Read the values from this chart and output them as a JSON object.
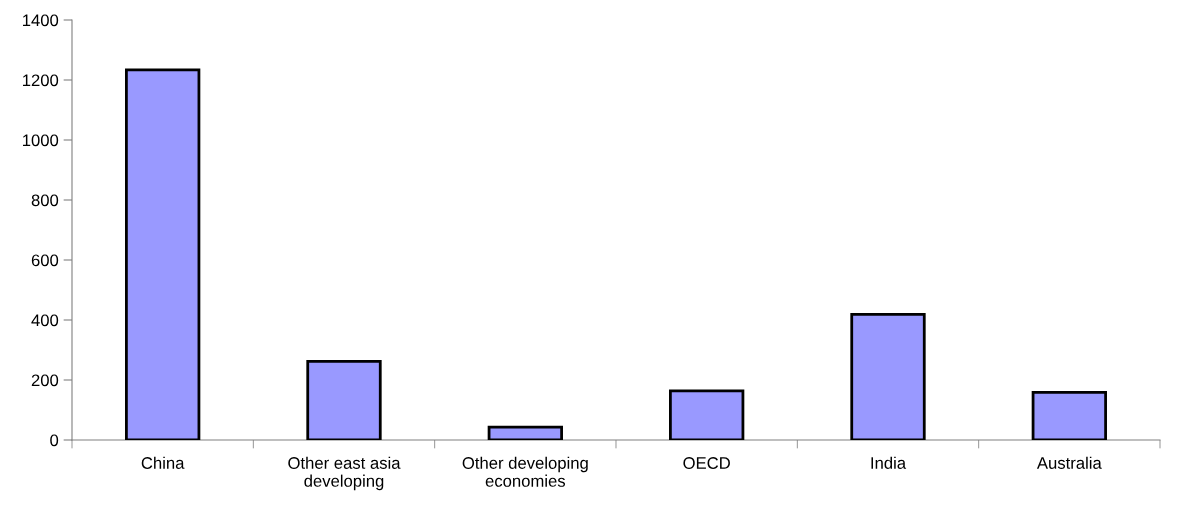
{
  "chart_data": {
    "type": "bar",
    "categories": [
      "China",
      "Other east asia\ndeveloping",
      "Other developing\neconomies",
      "OECD",
      "India",
      "Australia"
    ],
    "values": [
      1234,
      262,
      43,
      164,
      419,
      159
    ],
    "color": "#9999ff",
    "ylim": [
      0,
      1400
    ],
    "yticks": [
      0,
      200,
      400,
      600,
      800,
      1000,
      1200,
      1400
    ],
    "grid": false,
    "legend": false
  }
}
